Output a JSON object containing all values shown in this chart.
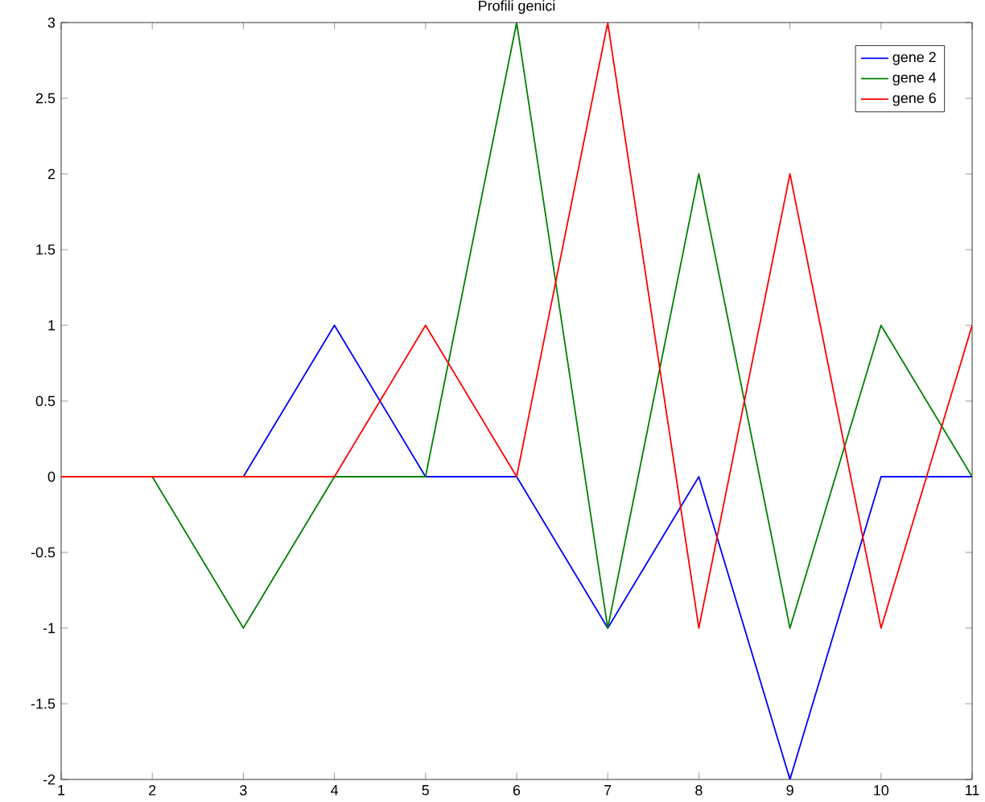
{
  "chart_data": {
    "type": "line",
    "title": "Profili genici",
    "x": [
      1,
      2,
      3,
      4,
      5,
      6,
      7,
      8,
      9,
      10,
      11
    ],
    "series": [
      {
        "name": "gene 2",
        "color": "#0000ff",
        "values": [
          0,
          0,
          0,
          1,
          0,
          0,
          -1,
          0,
          -2,
          0,
          0
        ]
      },
      {
        "name": "gene 4",
        "color": "#008000",
        "values": [
          0,
          0,
          -1,
          0,
          0,
          3,
          -1,
          2,
          -1,
          1,
          0
        ]
      },
      {
        "name": "gene 6",
        "color": "#ff0000",
        "values": [
          0,
          0,
          0,
          0,
          1,
          0,
          3,
          -1,
          2,
          -1,
          1
        ]
      }
    ],
    "xlim": [
      1,
      11
    ],
    "xticks": [
      1,
      2,
      3,
      4,
      5,
      6,
      7,
      8,
      9,
      10,
      11
    ],
    "ylim": [
      -2,
      3
    ],
    "yticks": [
      -2,
      -1.5,
      -1,
      -0.5,
      0,
      0.5,
      1,
      1.5,
      2,
      2.5,
      3
    ],
    "grid": false,
    "legend": "top right",
    "marker": "none",
    "line_style": "solid"
  }
}
